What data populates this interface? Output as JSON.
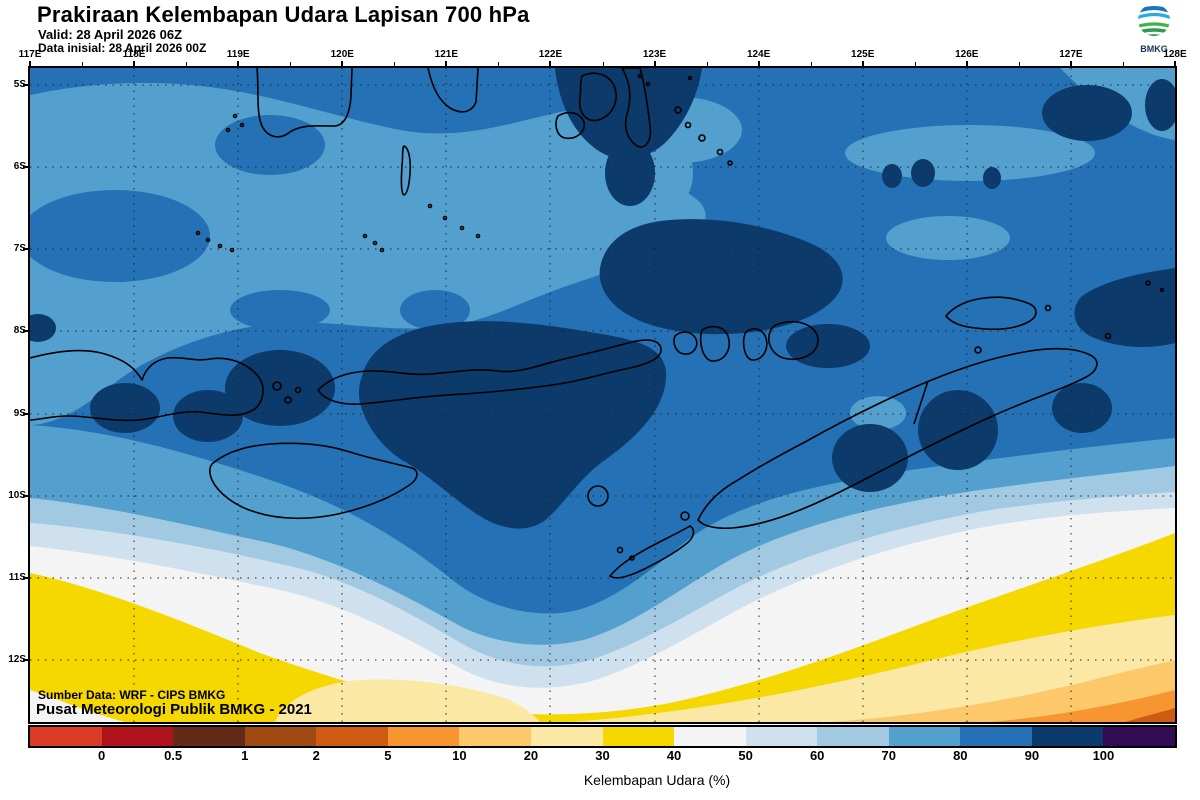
{
  "header": {
    "title": "Prakiraan Kelembapan Udara Lapisan 700 hPa",
    "valid_line": "Valid: 28 April 2026 06Z",
    "init_line": "Data inisial: 28 April 2026 00Z",
    "logo_label": "BMKG"
  },
  "map": {
    "x_axis_labels": [
      "117E",
      "118E",
      "119E",
      "120E",
      "121E",
      "122E",
      "123E",
      "124E",
      "125E",
      "126E",
      "127E",
      "128E"
    ],
    "y_axis_labels": [
      "5S",
      "6S",
      "7S",
      "8S",
      "9S",
      "10S",
      "11S",
      "12S"
    ],
    "credit_line1": "Sumber Data: WRF - CIPS BMKG",
    "credit_line2": "Pusat Meteorologi Publik BMKG - 2021"
  },
  "colorbar": {
    "caption": "Kelembapan Udara (%)",
    "tick_labels": [
      "0",
      "0.5",
      "1",
      "2",
      "5",
      "10",
      "20",
      "30",
      "40",
      "50",
      "60",
      "70",
      "80",
      "90",
      "100"
    ],
    "segment_colors": [
      "#DC3B26",
      "#B0121B",
      "#622A17",
      "#9E4A12",
      "#CE5B11",
      "#F79531",
      "#FCC869",
      "#FAE8A4",
      "#F5D800",
      "#F4F4F4",
      "#CFE0EE",
      "#A2C9E2",
      "#539FCD",
      "#2571B5",
      "#0C3A6B",
      "#330D54"
    ]
  },
  "chart_data": {
    "type": "heatmap",
    "title": "Prakiraan Kelembapan Udara Lapisan 700 hPa",
    "variable": "Kelembapan Udara (%)",
    "valid": "28 April 2026 06Z",
    "initial": "28 April 2026 00Z",
    "lon_range_deg_east": [
      117,
      128
    ],
    "lat_range_deg_south": [
      5,
      12
    ],
    "level_edges_percent": [
      0,
      0.5,
      1,
      2,
      5,
      10,
      20,
      30,
      40,
      50,
      60,
      70,
      80,
      90,
      100
    ],
    "level_colors": [
      "#DC3B26",
      "#B0121B",
      "#622A17",
      "#9E4A12",
      "#CE5B11",
      "#F79531",
      "#FCC869",
      "#FAE8A4",
      "#F5D800",
      "#F4F4F4",
      "#CFE0EE",
      "#A2C9E2",
      "#539FCD",
      "#2571B5",
      "#0C3A6B",
      "#330D54"
    ],
    "pattern_summary": "Humidity 80-90% over most of the domain north of ~10S, with 90-100% patches near Sulawesi, 122-125E around 7-8S, over central Flores/Sumbawa and inland Timor; 70-80% over the upper-left quadrant; humidity decreases southward in diagonal bands through 70,60,50,40% (white) to a 30-40% yellow band near 11-12S, reaching 5-20% (orange) in the far southeast corner."
  }
}
